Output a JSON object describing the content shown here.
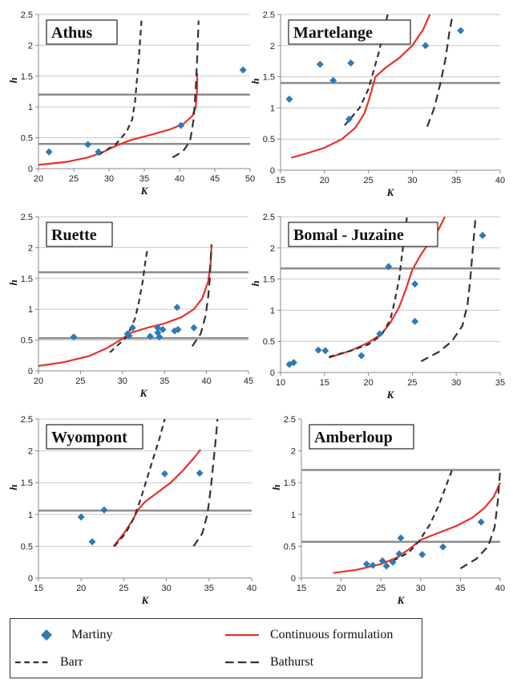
{
  "colors": {
    "martiny": "#2d7bb6",
    "continuous": "#e8302c",
    "model": "#333333",
    "hline": "#8c8c8c",
    "grid": "#c8c8c8"
  },
  "legend": {
    "martiny": "Martiny",
    "continuous": "Continuous formulation",
    "barr": "Barr",
    "bathurst": "Bathurst"
  },
  "chart_data": [
    {
      "type": "scatter",
      "title": "Athus",
      "xlabel": "K",
      "ylabel": "h",
      "xlim": [
        20,
        50
      ],
      "ylim": [
        0,
        2.5
      ],
      "xticks": [
        20,
        25,
        30,
        35,
        40,
        45,
        50
      ],
      "yticks": [
        0,
        0.5,
        1,
        1.5,
        2,
        2.5
      ],
      "grid": true,
      "series": [
        {
          "name": "Martiny",
          "kind": "points",
          "x": [
            21.5,
            27,
            28.5,
            40.2,
            49
          ],
          "y": [
            0.27,
            0.39,
            0.27,
            0.7,
            1.6
          ]
        },
        {
          "name": "Continuous formulation",
          "kind": "line",
          "x": [
            20,
            24,
            27,
            29,
            31,
            33,
            36,
            38.5,
            40.5,
            41.8,
            42.3,
            42.5,
            42.5
          ],
          "y": [
            0.06,
            0.11,
            0.18,
            0.26,
            0.37,
            0.46,
            0.55,
            0.63,
            0.72,
            0.85,
            1.0,
            1.3,
            1.55
          ]
        },
        {
          "name": "Barr",
          "kind": "dashed",
          "x": [
            28.5,
            31,
            32.5,
            33.3,
            33.7,
            34,
            34.3,
            34.6
          ],
          "y": [
            0.22,
            0.4,
            0.6,
            0.8,
            1.1,
            1.5,
            1.9,
            2.4
          ]
        },
        {
          "name": "Bathurst",
          "kind": "dashed",
          "x": [
            39,
            40.5,
            41.5,
            42,
            42.3,
            42.5,
            42.7
          ],
          "y": [
            0.18,
            0.28,
            0.45,
            0.8,
            1.3,
            1.8,
            2.4
          ]
        }
      ],
      "hlines": [
        1.2,
        0.4
      ]
    },
    {
      "type": "scatter",
      "title": "Martelange",
      "xlabel": "K",
      "ylabel": "h",
      "xlim": [
        15,
        40
      ],
      "ylim": [
        0,
        2.5
      ],
      "xticks": [
        15,
        20,
        25,
        30,
        35,
        40
      ],
      "yticks": [
        0,
        0.5,
        1,
        1.5,
        2,
        2.5
      ],
      "grid": true,
      "series": [
        {
          "name": "Martiny",
          "kind": "points",
          "x": [
            16,
            19.5,
            21,
            22.8,
            23,
            31.5,
            35.5
          ],
          "y": [
            1.14,
            1.7,
            1.44,
            0.82,
            1.72,
            2.0,
            2.24
          ]
        },
        {
          "name": "Continuous formulation",
          "kind": "line",
          "x": [
            16.2,
            18,
            20,
            22,
            23.5,
            24.5,
            25,
            25.4,
            25.8,
            27,
            28.5,
            30,
            31.2,
            32
          ],
          "y": [
            0.2,
            0.27,
            0.36,
            0.5,
            0.68,
            0.9,
            1.1,
            1.3,
            1.5,
            1.65,
            1.8,
            2.0,
            2.25,
            2.5
          ]
        },
        {
          "name": "Barr",
          "kind": "dashed",
          "x": [
            22.3,
            24,
            25,
            25.6,
            26.2,
            26.7,
            27.2
          ],
          "y": [
            0.72,
            1.0,
            1.3,
            1.6,
            1.9,
            2.2,
            2.5
          ]
        },
        {
          "name": "Bathurst",
          "kind": "dashed",
          "x": [
            31.7,
            32.5,
            33.2,
            33.8,
            34.2,
            34.6
          ],
          "y": [
            0.7,
            1.0,
            1.4,
            1.8,
            2.2,
            2.5
          ]
        }
      ],
      "hlines": [
        1.4
      ]
    },
    {
      "type": "scatter",
      "title": "Ruette",
      "xlabel": "K",
      "ylabel": "h",
      "xlim": [
        20,
        45
      ],
      "ylim": [
        0,
        2.5
      ],
      "xticks": [
        20,
        25,
        30,
        35,
        40,
        45
      ],
      "yticks": [
        0,
        0.5,
        1,
        1.5,
        2,
        2.5
      ],
      "grid": true,
      "series": [
        {
          "name": "Martiny",
          "kind": "points",
          "x": [
            24.2,
            30.6,
            30.8,
            31.2,
            33.3,
            34.2,
            34.2,
            34.4,
            34.8,
            36.2,
            36.5,
            36.6,
            38.5
          ],
          "y": [
            0.55,
            0.6,
            0.57,
            0.7,
            0.56,
            0.62,
            0.7,
            0.55,
            0.67,
            0.65,
            1.03,
            0.67,
            0.7
          ]
        },
        {
          "name": "Continuous formulation",
          "kind": "line",
          "x": [
            20,
            23,
            26,
            28,
            29.5,
            31,
            33,
            35,
            37,
            38.5,
            39.5,
            40.2,
            40.5,
            40.6
          ],
          "y": [
            0.08,
            0.14,
            0.24,
            0.36,
            0.48,
            0.62,
            0.7,
            0.77,
            0.87,
            1.0,
            1.18,
            1.45,
            1.75,
            2.05
          ]
        },
        {
          "name": "Barr",
          "kind": "dashed",
          "x": [
            28.5,
            30.5,
            31.5,
            32,
            32.4,
            32.7,
            33
          ],
          "y": [
            0.3,
            0.55,
            0.85,
            1.15,
            1.45,
            1.75,
            2.0
          ]
        },
        {
          "name": "Bathurst",
          "kind": "dashed",
          "x": [
            38.3,
            39.3,
            39.9,
            40.2,
            40.4,
            40.5,
            40.6
          ],
          "y": [
            0.4,
            0.6,
            0.9,
            1.2,
            1.5,
            1.8,
            2.05
          ]
        }
      ],
      "hlines": [
        1.6,
        0.53
      ]
    },
    {
      "type": "scatter",
      "title": "Bomal - Juzaine",
      "xlabel": "K",
      "ylabel": "h",
      "xlim": [
        10,
        35
      ],
      "ylim": [
        0,
        2.5
      ],
      "xticks": [
        10,
        15,
        20,
        25,
        30,
        35
      ],
      "yticks": [
        0,
        0.5,
        1,
        1.5,
        2,
        2.5
      ],
      "grid": true,
      "series": [
        {
          "name": "Martiny",
          "kind": "points",
          "x": [
            11,
            11.5,
            14.3,
            15.1,
            19.2,
            21.3,
            22.3,
            25.3,
            25.3,
            33
          ],
          "y": [
            0.13,
            0.16,
            0.36,
            0.35,
            0.27,
            0.62,
            1.7,
            1.42,
            0.82,
            2.2
          ]
        },
        {
          "name": "Continuous formulation",
          "kind": "line",
          "x": [
            15.5,
            18,
            20,
            21.5,
            22.5,
            23.5,
            24.3,
            25,
            26,
            27,
            28,
            28.7
          ],
          "y": [
            0.24,
            0.35,
            0.48,
            0.62,
            0.8,
            1.05,
            1.35,
            1.65,
            1.9,
            2.1,
            2.3,
            2.5
          ]
        },
        {
          "name": "Barr",
          "kind": "dashed",
          "x": [
            15.5,
            18,
            20,
            21.5,
            22.5,
            23,
            23.5,
            23.8,
            24.1,
            24.4
          ],
          "y": [
            0.25,
            0.35,
            0.45,
            0.6,
            0.85,
            1.15,
            1.5,
            1.85,
            2.2,
            2.5
          ]
        },
        {
          "name": "Bathurst",
          "kind": "dashed",
          "x": [
            26,
            28,
            29.5,
            30.7,
            31.3,
            31.6,
            31.9,
            32.2
          ],
          "y": [
            0.18,
            0.33,
            0.5,
            0.75,
            1.1,
            1.5,
            2.0,
            2.5
          ]
        }
      ],
      "hlines": [
        1.67
      ]
    },
    {
      "type": "scatter",
      "title": "Wyompont",
      "xlabel": "K",
      "ylabel": "h",
      "xlim": [
        15,
        40
      ],
      "ylim": [
        0,
        2.5
      ],
      "xticks": [
        15,
        20,
        25,
        30,
        35,
        40
      ],
      "yticks": [
        0,
        0.5,
        1,
        1.5,
        2,
        2.5
      ],
      "grid": true,
      "series": [
        {
          "name": "Martiny",
          "kind": "points",
          "x": [
            20,
            21.3,
            22.7,
            29.8,
            33.9
          ],
          "y": [
            0.96,
            0.57,
            1.07,
            1.64,
            1.65
          ]
        },
        {
          "name": "Continuous formulation",
          "kind": "line",
          "x": [
            23.8,
            25,
            26,
            26.7,
            27.5,
            29,
            30.5,
            32,
            33.3,
            34
          ],
          "y": [
            0.5,
            0.7,
            0.9,
            1.08,
            1.2,
            1.35,
            1.5,
            1.7,
            1.9,
            2.02
          ]
        },
        {
          "name": "Barr",
          "kind": "dashed",
          "x": [
            23.9,
            25.2,
            26.2,
            27,
            27.8,
            28.5,
            29.2,
            29.8
          ],
          "y": [
            0.5,
            0.7,
            0.95,
            1.25,
            1.6,
            1.9,
            2.2,
            2.5
          ]
        },
        {
          "name": "Bathurst",
          "kind": "dashed",
          "x": [
            33.2,
            34.2,
            34.8,
            35.2,
            35.5,
            35.8,
            36
          ],
          "y": [
            0.5,
            0.7,
            1.0,
            1.4,
            1.8,
            2.2,
            2.5
          ]
        }
      ],
      "hlines": [
        1.06
      ]
    },
    {
      "type": "scatter",
      "title": "Amberloup",
      "xlabel": "K",
      "ylabel": "h",
      "xlim": [
        15,
        40
      ],
      "ylim": [
        0,
        2.5
      ],
      "xticks": [
        15,
        20,
        25,
        30,
        35,
        40
      ],
      "yticks": [
        0,
        0.5,
        1,
        1.5,
        2,
        2.5
      ],
      "grid": false,
      "series": [
        {
          "name": "Martiny",
          "kind": "points",
          "x": [
            23.2,
            24,
            25.2,
            25.7,
            26.5,
            27.3,
            27.5,
            30.2,
            32.8,
            37.6
          ],
          "y": [
            0.22,
            0.2,
            0.27,
            0.19,
            0.25,
            0.38,
            0.63,
            0.37,
            0.49,
            0.88
          ]
        },
        {
          "name": "Continuous formulation",
          "kind": "line",
          "x": [
            19,
            22,
            25,
            27,
            28.5,
            30,
            32,
            34.5,
            36.5,
            38,
            39.2,
            40
          ],
          "y": [
            0.08,
            0.13,
            0.22,
            0.32,
            0.45,
            0.6,
            0.7,
            0.82,
            0.95,
            1.1,
            1.28,
            1.5
          ]
        },
        {
          "name": "Barr",
          "kind": "dashed",
          "x": [
            26.5,
            28.5,
            29.8,
            31.2,
            32.3,
            33.2,
            34
          ],
          "y": [
            0.27,
            0.4,
            0.58,
            0.85,
            1.15,
            1.45,
            1.72
          ]
        },
        {
          "name": "Bathurst",
          "kind": "dashed",
          "x": [
            35,
            37,
            38.5,
            39.3,
            39.7,
            40
          ],
          "y": [
            0.15,
            0.3,
            0.5,
            0.8,
            1.2,
            1.7
          ]
        }
      ],
      "hlines": [
        1.7,
        0.57
      ]
    }
  ]
}
